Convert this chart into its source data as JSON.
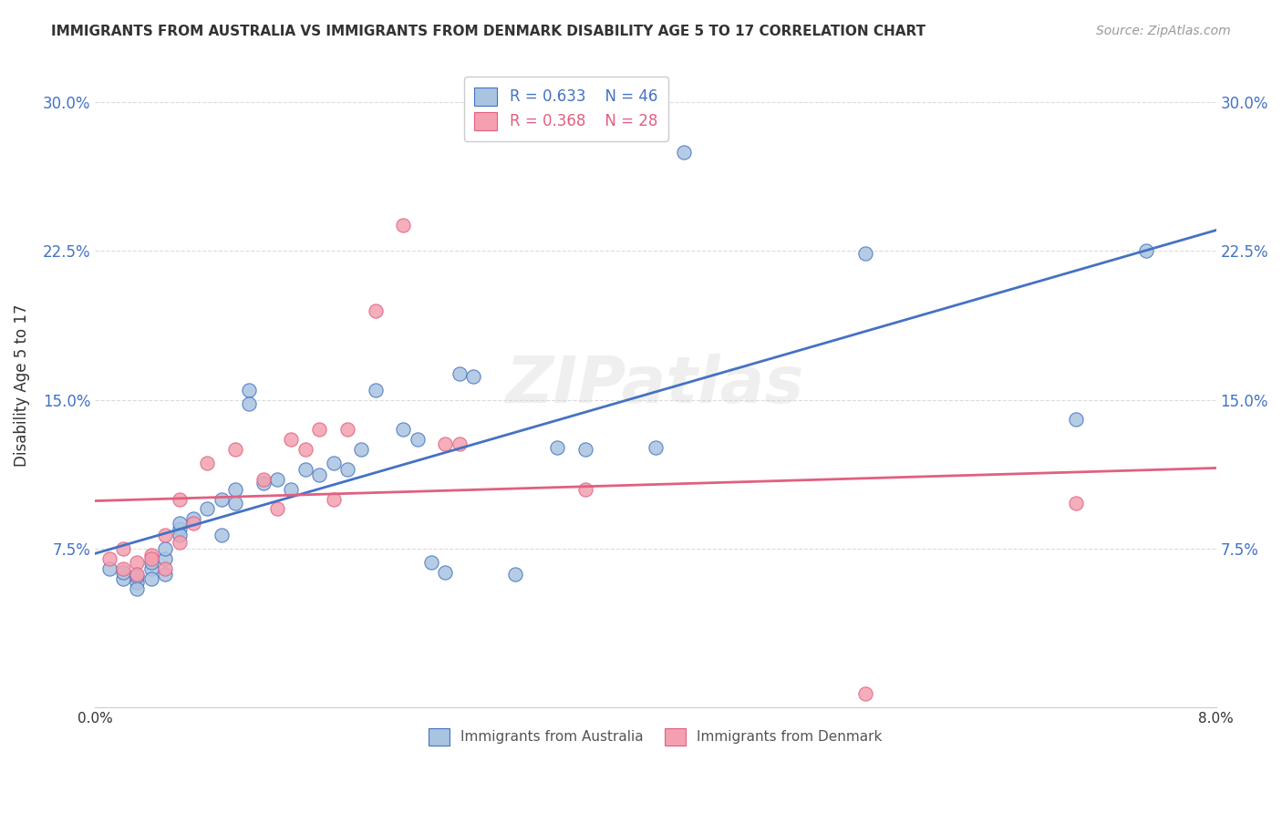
{
  "title": "IMMIGRANTS FROM AUSTRALIA VS IMMIGRANTS FROM DENMARK DISABILITY AGE 5 TO 17 CORRELATION CHART",
  "source": "Source: ZipAtlas.com",
  "ylabel": "Disability Age 5 to 17",
  "yticks": [
    0.075,
    0.15,
    0.225,
    0.3
  ],
  "ytick_labels": [
    "7.5%",
    "15.0%",
    "22.5%",
    "30.0%"
  ],
  "xlim": [
    0.0,
    0.08
  ],
  "ylim": [
    -0.005,
    0.32
  ],
  "australia_R": 0.633,
  "australia_N": 46,
  "denmark_R": 0.368,
  "denmark_N": 28,
  "australia_color": "#a8c4e0",
  "denmark_color": "#f4a0b0",
  "australia_line_color": "#4472c4",
  "denmark_line_color": "#e06080",
  "watermark": "ZIPatlas",
  "australia_x": [
    0.001,
    0.002,
    0.002,
    0.003,
    0.003,
    0.003,
    0.004,
    0.004,
    0.004,
    0.005,
    0.005,
    0.005,
    0.006,
    0.006,
    0.006,
    0.007,
    0.008,
    0.009,
    0.009,
    0.01,
    0.01,
    0.011,
    0.011,
    0.012,
    0.013,
    0.014,
    0.015,
    0.016,
    0.017,
    0.018,
    0.019,
    0.02,
    0.022,
    0.023,
    0.024,
    0.025,
    0.026,
    0.027,
    0.03,
    0.033,
    0.035,
    0.04,
    0.042,
    0.055,
    0.07,
    0.075
  ],
  "australia_y": [
    0.065,
    0.06,
    0.063,
    0.058,
    0.061,
    0.055,
    0.065,
    0.068,
    0.06,
    0.062,
    0.07,
    0.075,
    0.085,
    0.088,
    0.082,
    0.09,
    0.095,
    0.082,
    0.1,
    0.105,
    0.098,
    0.155,
    0.148,
    0.108,
    0.11,
    0.105,
    0.115,
    0.112,
    0.118,
    0.115,
    0.125,
    0.155,
    0.135,
    0.13,
    0.068,
    0.063,
    0.163,
    0.162,
    0.062,
    0.126,
    0.125,
    0.126,
    0.275,
    0.224,
    0.14,
    0.225
  ],
  "denmark_x": [
    0.001,
    0.002,
    0.002,
    0.003,
    0.003,
    0.004,
    0.004,
    0.005,
    0.005,
    0.006,
    0.006,
    0.007,
    0.008,
    0.01,
    0.012,
    0.013,
    0.014,
    0.015,
    0.016,
    0.017,
    0.018,
    0.02,
    0.022,
    0.025,
    0.026,
    0.035,
    0.055,
    0.07
  ],
  "denmark_y": [
    0.07,
    0.065,
    0.075,
    0.068,
    0.062,
    0.072,
    0.07,
    0.082,
    0.065,
    0.078,
    0.1,
    0.088,
    0.118,
    0.125,
    0.11,
    0.095,
    0.13,
    0.125,
    0.135,
    0.1,
    0.135,
    0.195,
    0.238,
    0.128,
    0.128,
    0.105,
    0.002,
    0.098
  ],
  "grid_color": "#cccccc",
  "background_color": "#ffffff"
}
